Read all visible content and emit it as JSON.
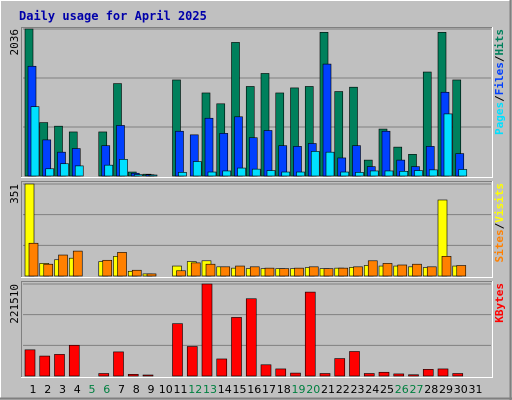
{
  "chart_data": [
    {
      "type": "bar",
      "title": "Daily usage for April 2025",
      "categories": [
        "1",
        "2",
        "3",
        "4",
        "5",
        "6",
        "7",
        "8",
        "9",
        "10",
        "11",
        "12",
        "13",
        "14",
        "15",
        "16",
        "17",
        "18",
        "19",
        "20",
        "21",
        "22",
        "23",
        "24",
        "25",
        "26",
        "27",
        "28",
        "29",
        "30",
        "31"
      ],
      "weekend_days": [
        "5",
        "6",
        "12",
        "13",
        "19",
        "20",
        "26",
        "27"
      ],
      "ymax_label": "2036",
      "ylim": [
        0,
        2036
      ],
      "legend": [
        "Pages",
        "/",
        "Files",
        "/",
        "Hits"
      ],
      "series": [
        {
          "name": "Hits",
          "color": "#00805c",
          "values": [
            2036,
            740,
            690,
            610,
            0,
            610,
            1280,
            55,
            25,
            0,
            1330,
            0,
            1150,
            1000,
            1850,
            1240,
            1420,
            1150,
            1220,
            1240,
            1990,
            1170,
            1230,
            220,
            650,
            400,
            300,
            1440,
            1990,
            1330,
            0
          ]
        },
        {
          "name": "Files",
          "color": "#0040ff",
          "values": [
            1520,
            500,
            330,
            380,
            0,
            420,
            700,
            38,
            18,
            0,
            620,
            570,
            800,
            590,
            820,
            530,
            630,
            420,
            410,
            450,
            1550,
            250,
            420,
            130,
            620,
            220,
            130,
            410,
            1160,
            310,
            0
          ]
        },
        {
          "name": "Pages",
          "color": "#00e0ff",
          "values": [
            960,
            100,
            170,
            140,
            0,
            150,
            230,
            20,
            10,
            0,
            50,
            200,
            55,
            70,
            110,
            95,
            75,
            55,
            55,
            340,
            330,
            55,
            50,
            70,
            70,
            65,
            75,
            85,
            860,
            90,
            0
          ]
        }
      ]
    },
    {
      "type": "bar",
      "ymax_label": "351",
      "ylim": [
        0,
        351
      ],
      "legend": [
        "Sites",
        "/",
        "Visits"
      ],
      "series": [
        {
          "name": "Visits",
          "color": "#ffff00",
          "values": [
            351,
            48,
            62,
            68,
            0,
            55,
            75,
            18,
            8,
            0,
            38,
            55,
            58,
            35,
            30,
            28,
            28,
            28,
            28,
            32,
            28,
            30,
            33,
            40,
            38,
            38,
            35,
            32,
            290,
            38,
            0
          ]
        },
        {
          "name": "Sites",
          "color": "#ff8000",
          "values": [
            125,
            45,
            80,
            95,
            0,
            60,
            90,
            22,
            8,
            0,
            20,
            50,
            45,
            35,
            38,
            35,
            30,
            28,
            30,
            35,
            28,
            30,
            35,
            58,
            48,
            42,
            45,
            35,
            75,
            40,
            0
          ]
        }
      ]
    },
    {
      "type": "bar",
      "ymax_label": "221510",
      "ylim": [
        0,
        221510
      ],
      "legend": [
        "KBytes"
      ],
      "series": [
        {
          "name": "KBytes",
          "color": "#ff0000",
          "values": [
            63000,
            48000,
            52000,
            74000,
            0,
            6000,
            58000,
            4000,
            2000,
            0,
            126000,
            71000,
            221510,
            41000,
            141000,
            186000,
            27000,
            17000,
            7000,
            202000,
            6000,
            42000,
            59000,
            6000,
            9000,
            5000,
            3000,
            16000,
            17000,
            6000,
            0
          ]
        }
      ]
    }
  ]
}
